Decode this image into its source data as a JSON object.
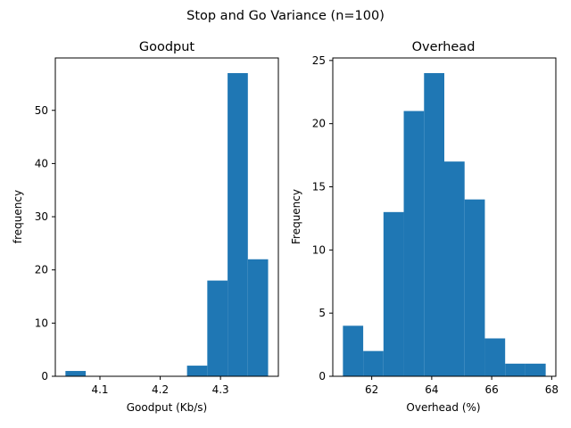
{
  "figure": {
    "suptitle": "Stop and Go Variance (n=100)"
  },
  "chart_data": [
    {
      "type": "bar",
      "title": "Goodput",
      "xlabel": "Goodput (Kb/s)",
      "ylabel": "frequency",
      "bin_edges": [
        4.0428,
        4.0765,
        4.1101,
        4.1437,
        4.1773,
        4.2109,
        4.2445,
        4.2781,
        4.3118,
        4.3454,
        4.379
      ],
      "values": [
        1,
        0,
        0,
        0,
        0,
        0,
        2,
        18,
        57,
        22
      ],
      "xlim": [
        4.026,
        4.396
      ],
      "ylim": [
        0,
        59.85
      ],
      "xticks": [
        4.1,
        4.2,
        4.3
      ],
      "xtick_labels": [
        "4.1",
        "4.2",
        "4.3"
      ],
      "yticks": [
        0,
        10,
        20,
        30,
        40,
        50
      ],
      "ytick_labels": [
        "0",
        "10",
        "20",
        "30",
        "40",
        "50"
      ],
      "color": "#1f77b4"
    },
    {
      "type": "bar",
      "title": "Overhead",
      "xlabel": "Overhead (%)",
      "ylabel": "Frequency",
      "bin_edges": [
        61.04,
        61.716,
        62.392,
        63.068,
        63.744,
        64.42,
        65.096,
        65.772,
        66.448,
        67.124,
        67.8
      ],
      "values": [
        4,
        2,
        13,
        21,
        24,
        17,
        14,
        3,
        1,
        1
      ],
      "xlim": [
        60.702,
        68.138
      ],
      "ylim": [
        0,
        25.2
      ],
      "xticks": [
        62,
        64,
        66,
        68
      ],
      "xtick_labels": [
        "62",
        "64",
        "66",
        "68"
      ],
      "yticks": [
        0,
        5,
        10,
        15,
        20,
        25
      ],
      "ytick_labels": [
        "0",
        "5",
        "10",
        "15",
        "20",
        "25"
      ],
      "color": "#1f77b4"
    }
  ]
}
